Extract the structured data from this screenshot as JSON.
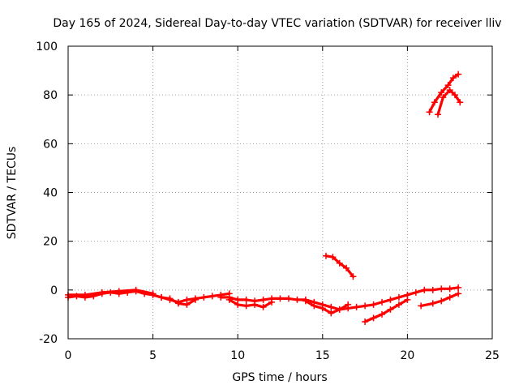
{
  "chart_data": {
    "type": "scatter",
    "title": "Day 165 of 2024, Sidereal Day-to-day VTEC variation (SDTVAR) for receiver lliv",
    "xlabel": "GPS time / hours",
    "ylabel": "SDTVAR / TECUs",
    "xlim": [
      0,
      25
    ],
    "ylim": [
      -20,
      100
    ],
    "x_ticks": [
      0,
      5,
      10,
      15,
      20,
      25
    ],
    "y_ticks": [
      -20,
      0,
      20,
      40,
      60,
      80,
      100
    ],
    "grid": true,
    "legend": "none",
    "color": "#ff0000",
    "series": [
      {
        "x": [
          0,
          0.5,
          1,
          1.5,
          2,
          2.5,
          3,
          3.5,
          4,
          4.5,
          5,
          5.5,
          6,
          6.5,
          7,
          7.5,
          8,
          8.5,
          9,
          9.5
        ],
        "y": [
          -3,
          -2.5,
          -3,
          -2.5,
          -1.5,
          -1,
          -1.5,
          -1,
          -0.5,
          -1.5,
          -2,
          -3,
          -4,
          -5,
          -4,
          -3.5,
          -3,
          -2.5,
          -2,
          -1.5
        ]
      },
      {
        "x": [
          0,
          1,
          2,
          3,
          4,
          5
        ],
        "y": [
          -2,
          -2,
          -1,
          -0.5,
          0,
          -1.5
        ]
      },
      {
        "x": [
          5.5,
          6,
          6.5,
          7,
          7.5
        ],
        "y": [
          -3,
          -3.5,
          -5.5,
          -6,
          -4
        ]
      },
      {
        "x": [
          9,
          9.5,
          10,
          10.5,
          11,
          11.5,
          12,
          12.5,
          13,
          13.5,
          14,
          14.5,
          15,
          15.5,
          16,
          16.5,
          17,
          17.5,
          18,
          18.5,
          19,
          19.5,
          20,
          20.5,
          21,
          21.5,
          22,
          22.5,
          23
        ],
        "y": [
          -3,
          -3,
          -4,
          -4,
          -4.5,
          -4,
          -3.5,
          -3.5,
          -3.5,
          -4,
          -4,
          -5,
          -6,
          -7,
          -8,
          -7.5,
          -7,
          -6.5,
          -6,
          -5,
          -4,
          -3,
          -2,
          -1,
          0,
          0,
          0.5,
          0.5,
          1
        ]
      },
      {
        "x": [
          9.5,
          10,
          10.5,
          11,
          11.5,
          12
        ],
        "y": [
          -4,
          -6,
          -6.5,
          -6,
          -7,
          -5
        ]
      },
      {
        "x": [
          14,
          14.5,
          15,
          15.5,
          16,
          16.5
        ],
        "y": [
          -4.5,
          -6.5,
          -7.5,
          -9.5,
          -8,
          -6
        ]
      },
      {
        "x": [
          15.2,
          15.6,
          16,
          16.4,
          16.8
        ],
        "y": [
          14,
          13.5,
          11,
          9,
          5.5
        ]
      },
      {
        "x": [
          17.5,
          18,
          18.5,
          19,
          19.5,
          20
        ],
        "y": [
          -13,
          -11.5,
          -10,
          -8,
          -6,
          -4
        ]
      },
      {
        "x": [
          20.8,
          21.5,
          22,
          22.5,
          23
        ],
        "y": [
          -6.5,
          -5.5,
          -4.5,
          -3,
          -1.5
        ]
      },
      {
        "x": [
          21.3,
          21.6,
          22,
          22.4,
          22.7,
          23
        ],
        "y": [
          73,
          77,
          81,
          84,
          87,
          88.5
        ]
      },
      {
        "x": [
          21.8,
          22.1,
          22.5,
          22.8,
          23.1
        ],
        "y": [
          72,
          79,
          82,
          80,
          77
        ]
      }
    ]
  }
}
